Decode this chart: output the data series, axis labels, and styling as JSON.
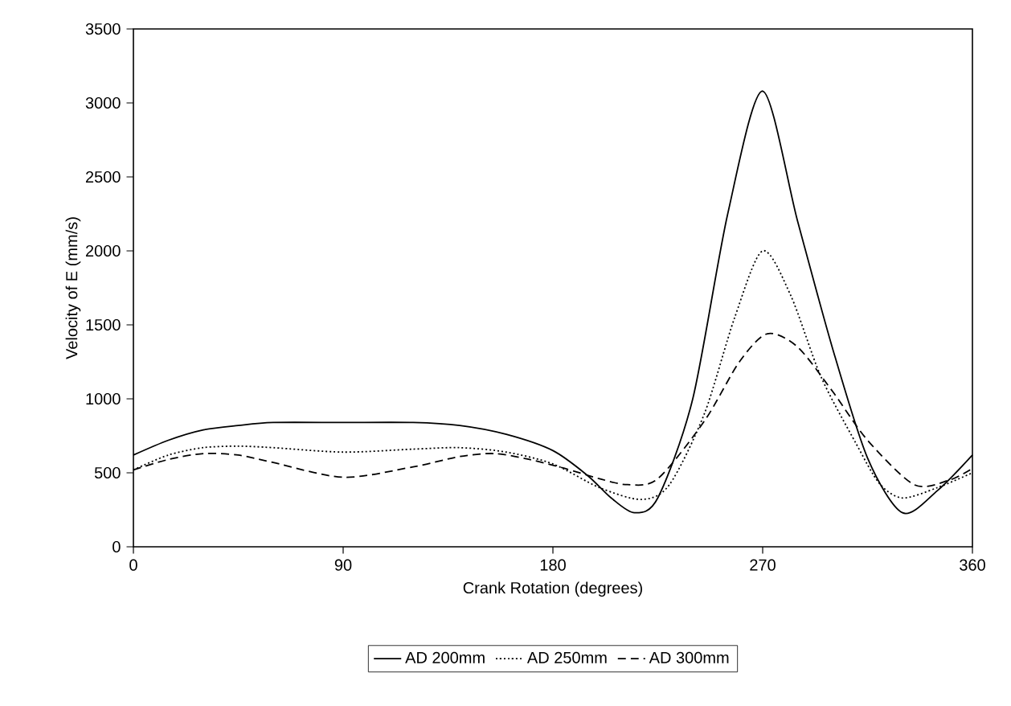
{
  "chart_data": {
    "type": "line",
    "xlabel": "Crank Rotation (degrees)",
    "ylabel": "Velocity of E (mm/s)",
    "xlim": [
      0,
      360
    ],
    "xticks": [
      0,
      90,
      180,
      270,
      360
    ],
    "ylim": [
      0,
      3500
    ],
    "yticks": [
      0,
      500,
      1000,
      1500,
      2000,
      2500,
      3000,
      3500
    ],
    "legend": "bottom",
    "grid": false,
    "marker": "none",
    "series": [
      {
        "name": "AD 200mm",
        "color": "#000000",
        "line_style": "solid",
        "x": [
          0,
          15,
          30,
          45,
          60,
          90,
          120,
          140,
          160,
          180,
          195,
          205,
          215,
          225,
          240,
          255,
          270,
          285,
          300,
          315,
          330,
          345,
          360
        ],
        "values": [
          620,
          720,
          790,
          820,
          840,
          840,
          840,
          820,
          760,
          650,
          480,
          330,
          230,
          330,
          1000,
          2250,
          3080,
          2200,
          1340,
          600,
          230,
          380,
          620
        ]
      },
      {
        "name": "AD 250mm",
        "color": "#000000",
        "line_style": "dotted",
        "x": [
          0,
          15,
          30,
          45,
          60,
          90,
          120,
          140,
          160,
          180,
          200,
          218,
          230,
          245,
          258,
          270,
          282,
          295,
          310,
          320,
          330,
          345,
          360
        ],
        "values": [
          520,
          620,
          670,
          680,
          670,
          640,
          660,
          670,
          640,
          560,
          400,
          320,
          420,
          900,
          1550,
          2000,
          1700,
          1150,
          700,
          430,
          330,
          400,
          500
        ]
      },
      {
        "name": "AD 300mm",
        "color": "#000000",
        "line_style": "dashed",
        "x": [
          0,
          15,
          30,
          45,
          60,
          90,
          120,
          140,
          155,
          170,
          185,
          200,
          212,
          225,
          245,
          260,
          272,
          285,
          300,
          315,
          335,
          350,
          360
        ],
        "values": [
          520,
          590,
          630,
          620,
          570,
          470,
          540,
          610,
          630,
          590,
          530,
          460,
          420,
          460,
          850,
          1250,
          1440,
          1350,
          1050,
          720,
          420,
          450,
          530
        ]
      }
    ]
  }
}
